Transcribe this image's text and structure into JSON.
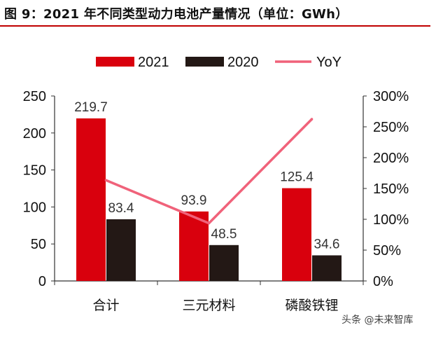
{
  "title": "图 9：2021 年不同类型动力电池产量情况（单位：GWh）",
  "watermark": "头条 @未来智库",
  "colors": {
    "bar2021": "#d9000d",
    "bar2020": "#231815",
    "yoy": "#f0627a",
    "rule": "#c00000"
  },
  "chart_data": {
    "type": "bar",
    "categories": [
      "合计",
      "三元材料",
      "磷酸铁锂"
    ],
    "series": [
      {
        "name": "2021",
        "type": "bar",
        "values": [
          219.7,
          93.9,
          125.4
        ],
        "labels": [
          "219.7",
          "93.9",
          "125.4"
        ]
      },
      {
        "name": "2020",
        "type": "bar",
        "values": [
          83.4,
          48.5,
          34.6
        ],
        "labels": [
          "83.4",
          "48.5",
          "34.6"
        ]
      },
      {
        "name": "YoY",
        "type": "line",
        "axis": "right",
        "values": [
          163.4,
          93.6,
          262.4
        ]
      }
    ],
    "left_axis": {
      "min": 0,
      "max": 250,
      "ticks": [
        "0",
        "50",
        "100",
        "150",
        "200",
        "250"
      ],
      "tick_values": [
        0,
        50,
        100,
        150,
        200,
        250
      ]
    },
    "right_axis": {
      "min": 0,
      "max": 300,
      "ticks": [
        "0%",
        "50%",
        "100%",
        "150%",
        "200%",
        "250%",
        "300%"
      ],
      "tick_values": [
        0,
        50,
        100,
        150,
        200,
        250,
        300
      ]
    },
    "legend": [
      "2021",
      "2020",
      "YoY"
    ],
    "legend_position": "top-center",
    "grid": false
  }
}
